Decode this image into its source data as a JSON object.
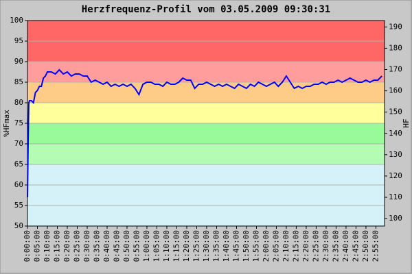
{
  "chart_data": {
    "type": "line",
    "title": "Herzfrequenz-Profil vom 03.05.2009 09:30:31",
    "y_label": "%HFmax",
    "y2_label": "HF",
    "x": [
      0,
      20,
      40,
      60,
      120,
      180,
      240,
      300,
      360,
      420,
      480,
      540,
      600,
      720,
      840,
      960,
      1080,
      1200,
      1320,
      1440,
      1560,
      1680,
      1800,
      1920,
      2040,
      2160,
      2280,
      2400,
      2520,
      2640,
      2760,
      2880,
      3000,
      3120,
      3240,
      3360,
      3480,
      3600,
      3720,
      3840,
      3960,
      4080,
      4200,
      4320,
      4440,
      4560,
      4680,
      4800,
      4920,
      5040,
      5160,
      5280,
      5400,
      5520,
      5640,
      5760,
      5880,
      6000,
      6120,
      6240,
      6360,
      6480,
      6600,
      6720,
      6840,
      6960,
      7080,
      7200,
      7320,
      7440,
      7560,
      7680,
      7800,
      7920,
      8040,
      8160,
      8280,
      8400,
      8520,
      8640,
      8760,
      8880,
      9000,
      9120,
      9240,
      9360,
      9480,
      9600,
      9720,
      9840,
      9960,
      10080,
      10200,
      10320,
      10440,
      10560,
      10680
    ],
    "series": [
      {
        "name": "%HFmax",
        "color": "#0000ff",
        "values": [
          57,
          70,
          80,
          80.5,
          80.5,
          80,
          82.5,
          83,
          84,
          84,
          86,
          86.5,
          87.5,
          87.5,
          87,
          88,
          87,
          87.5,
          86.5,
          87,
          87,
          86.5,
          86.5,
          85,
          85.5,
          85,
          84.5,
          85,
          84,
          84.5,
          84,
          84.5,
          84,
          84.5,
          83.5,
          82,
          84.5,
          85,
          85,
          84.5,
          84.5,
          84,
          85,
          84.5,
          84.5,
          85,
          86,
          85.5,
          85.5,
          83.5,
          84.5,
          84.5,
          85,
          84.5,
          84,
          84.5,
          84,
          84.5,
          84,
          83.5,
          84.5,
          84,
          83.5,
          84.5,
          84,
          85,
          84.5,
          84,
          84.5,
          85,
          84,
          85,
          86.5,
          85,
          83.5,
          84,
          83.5,
          84,
          84,
          84.5,
          84.5,
          85,
          84.5,
          85,
          85,
          85.5,
          85,
          85.5,
          86,
          85.5,
          85,
          85,
          85.5,
          85,
          85.5,
          85.5,
          86.5
        ]
      }
    ],
    "xlim": [
      0,
      10760
    ],
    "xticks": [
      {
        "value": 0,
        "label": "0:00:00"
      },
      {
        "value": 300,
        "label": "0:05:00"
      },
      {
        "value": 600,
        "label": "0:10:00"
      },
      {
        "value": 900,
        "label": "0:15:00"
      },
      {
        "value": 1200,
        "label": "0:20:00"
      },
      {
        "value": 1500,
        "label": "0:25:00"
      },
      {
        "value": 1800,
        "label": "0:30:00"
      },
      {
        "value": 2100,
        "label": "0:35:00"
      },
      {
        "value": 2400,
        "label": "0:40:00"
      },
      {
        "value": 2700,
        "label": "0:45:00"
      },
      {
        "value": 3000,
        "label": "0:50:00"
      },
      {
        "value": 3300,
        "label": "0:55:00"
      },
      {
        "value": 3600,
        "label": "1:00:00"
      },
      {
        "value": 3900,
        "label": "1:05:00"
      },
      {
        "value": 4200,
        "label": "1:10:00"
      },
      {
        "value": 4500,
        "label": "1:15:00"
      },
      {
        "value": 4800,
        "label": "1:20:00"
      },
      {
        "value": 5100,
        "label": "1:25:00"
      },
      {
        "value": 5400,
        "label": "1:30:00"
      },
      {
        "value": 5700,
        "label": "1:35:00"
      },
      {
        "value": 6000,
        "label": "1:40:00"
      },
      {
        "value": 6300,
        "label": "1:45:00"
      },
      {
        "value": 6600,
        "label": "1:50:00"
      },
      {
        "value": 6900,
        "label": "1:55:00"
      },
      {
        "value": 7200,
        "label": "2:00:00"
      },
      {
        "value": 7500,
        "label": "2:05:00"
      },
      {
        "value": 7800,
        "label": "2:10:00"
      },
      {
        "value": 8100,
        "label": "2:15:00"
      },
      {
        "value": 8400,
        "label": "2:20:00"
      },
      {
        "value": 8700,
        "label": "2:25:00"
      },
      {
        "value": 9000,
        "label": "2:30:00"
      },
      {
        "value": 9300,
        "label": "2:35:00"
      },
      {
        "value": 9600,
        "label": "2:40:00"
      },
      {
        "value": 9900,
        "label": "2:45:00"
      },
      {
        "value": 10200,
        "label": "2:50:00"
      },
      {
        "value": 10500,
        "label": "2:55:00"
      }
    ],
    "ylim": [
      50,
      100
    ],
    "yticks": [
      50,
      55,
      60,
      65,
      70,
      75,
      80,
      85,
      90,
      95,
      100
    ],
    "y2lim": [
      96.5,
      193
    ],
    "y2ticks": [
      100,
      110,
      120,
      130,
      140,
      150,
      160,
      170,
      180,
      190
    ],
    "grid": true,
    "zones": [
      {
        "from": 50,
        "to": 65,
        "color": "#d4f2f8"
      },
      {
        "from": 65,
        "to": 70,
        "color": "#b4fcb4"
      },
      {
        "from": 70,
        "to": 75,
        "color": "#98fa98"
      },
      {
        "from": 75,
        "to": 80,
        "color": "#ffff9c"
      },
      {
        "from": 80,
        "to": 85,
        "color": "#ffcc88"
      },
      {
        "from": 85,
        "to": 90,
        "color": "#ff9c9c"
      },
      {
        "from": 90,
        "to": 100,
        "color": "#ff6666"
      }
    ]
  }
}
